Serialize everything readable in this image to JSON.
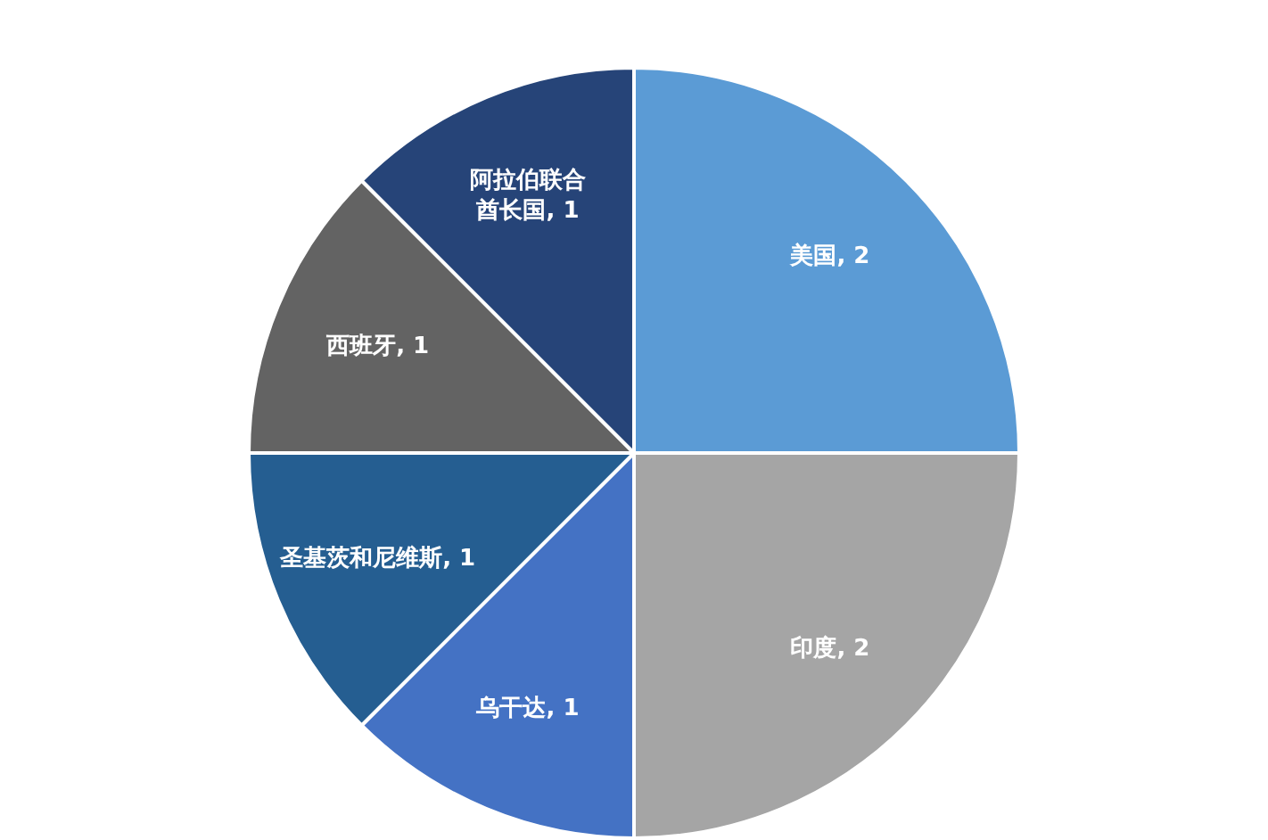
{
  "chart_data": {
    "type": "pie",
    "categories": [
      "美国",
      "印度",
      "乌干达",
      "圣基茨和尼维斯",
      "西班牙",
      "阿拉伯联合酋长国"
    ],
    "values": [
      2,
      2,
      1,
      1,
      1,
      1
    ],
    "colors": [
      "#5b9bd5",
      "#a5a5a5",
      "#4472c4",
      "#255e91",
      "#636363",
      "#264478"
    ],
    "value_labels": [
      ", 2",
      ", 2",
      ", 1",
      ", 1",
      ", 1",
      ", 1"
    ],
    "legend": false
  }
}
